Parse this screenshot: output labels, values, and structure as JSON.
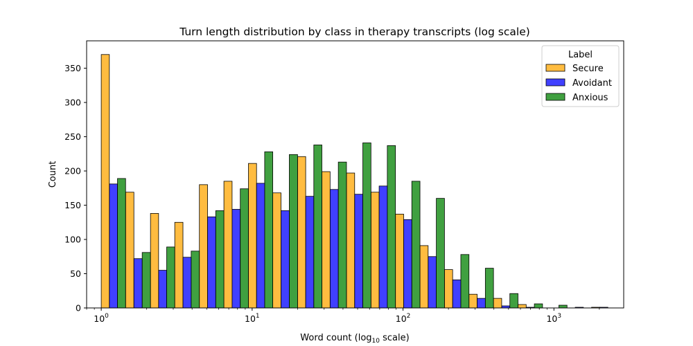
{
  "chart_data": {
    "type": "bar",
    "title": "Turn length distribution by class in therapy transcripts (log scale)",
    "xlabel": "Word count (log",
    "xlabel_sub": "10",
    "xlabel_tail": " scale)",
    "ylabel": "Count",
    "x_scale": "log",
    "xlim": [
      0.8,
      2900
    ],
    "ylim": [
      0,
      390
    ],
    "yticks": [
      0,
      50,
      100,
      150,
      200,
      250,
      300,
      350
    ],
    "xticks": [
      {
        "value": 1,
        "base": "10",
        "exp": "0"
      },
      {
        "value": 10,
        "base": "10",
        "exp": "1"
      },
      {
        "value": 100,
        "base": "10",
        "exp": "2"
      },
      {
        "value": 1000,
        "base": "10",
        "exp": "3"
      }
    ],
    "grid": false,
    "bin_edges": [
      1.0,
      1.45,
      2.12,
      3.07,
      4.47,
      6.5,
      9.45,
      13.7,
      20.0,
      29.0,
      42.2,
      61.3,
      89.1,
      129.5,
      188.2,
      273.6,
      397.7,
      578.1,
      840.4,
      1221.6,
      1775.8,
      2581.4
    ],
    "series": [
      {
        "name": "Secure",
        "color": "#FFA500",
        "values": [
          370,
          169,
          138,
          125,
          180,
          185,
          211,
          168,
          221,
          199,
          197,
          169,
          137,
          91,
          56,
          20,
          14,
          5,
          0,
          0,
          1
        ]
      },
      {
        "name": "Avoidant",
        "color": "#0000FF",
        "values": [
          181,
          72,
          55,
          74,
          133,
          144,
          182,
          142,
          163,
          173,
          166,
          178,
          129,
          75,
          41,
          14,
          3,
          1,
          0,
          1,
          1
        ]
      },
      {
        "name": "Anxious",
        "color": "#008000",
        "values": [
          189,
          81,
          89,
          83,
          142,
          174,
          228,
          224,
          238,
          213,
          241,
          237,
          185,
          160,
          78,
          58,
          21,
          6,
          4,
          0,
          0
        ]
      }
    ],
    "legend": {
      "title": "Label",
      "placement": "top-right"
    }
  }
}
